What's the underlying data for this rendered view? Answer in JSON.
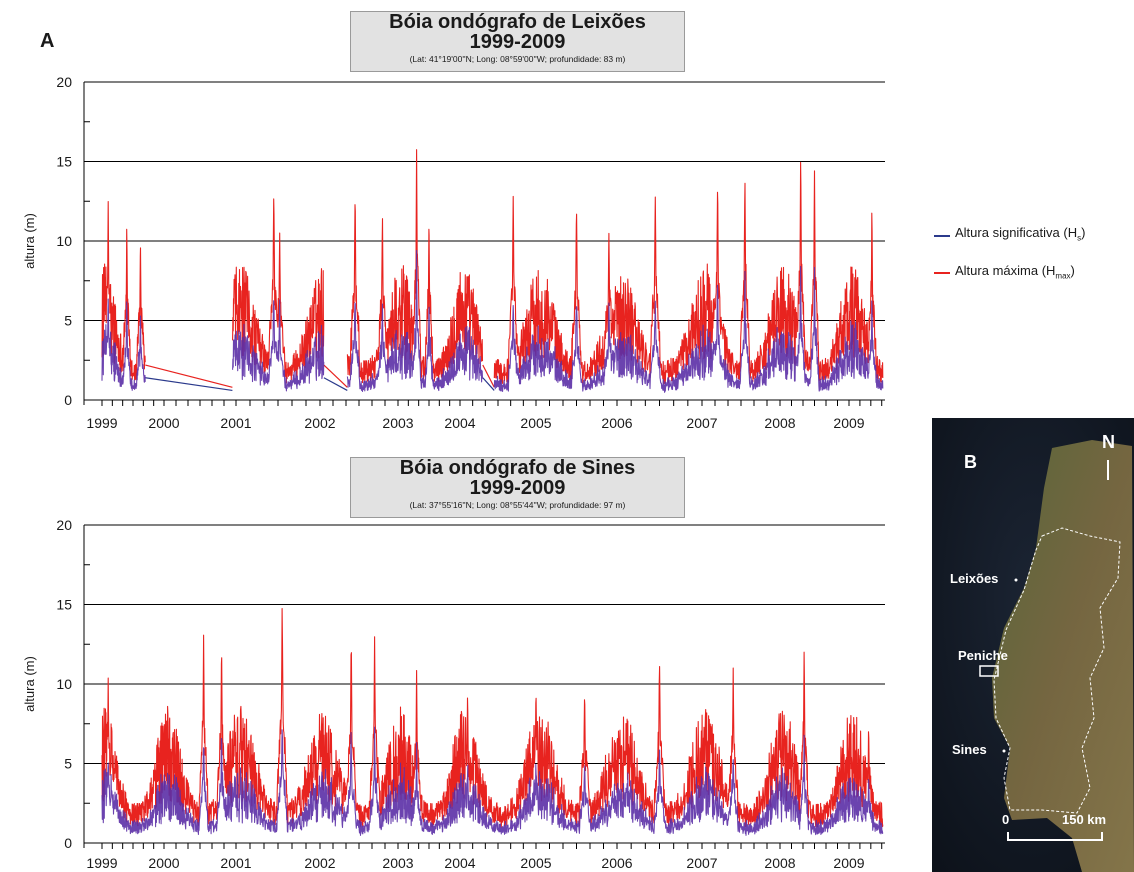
{
  "figure": {
    "panel_a_letter": "A",
    "panel_b_letter": "B",
    "legend": [
      {
        "label_main": "Altura significativa (H",
        "label_sub": "s",
        "label_end": ")",
        "color": "#2b3a8c"
      },
      {
        "label_main": "Altura máxima (H",
        "label_sub": "max",
        "label_end": ")",
        "color": "#e8231f"
      }
    ]
  },
  "colors": {
    "hs": "#2b3a8c",
    "hmax": "#e8231f",
    "purple_overlap": "#6a2aa8",
    "grid": "#000000"
  },
  "map": {
    "north_label": "N",
    "places": [
      "Leixões",
      "Peniche",
      "Sines"
    ],
    "scale_zero": "0",
    "scale_end": "150 km"
  },
  "chart_data": [
    {
      "type": "line",
      "title": "Bóia ondógrafo de Leixões",
      "title_years": "1999-2009",
      "subtitle": "(Lat: 41°19'00''N; Long: 08°59'00''W; profundidade: 83 m)",
      "ylabel": "altura (m)",
      "xlabel": "",
      "ylim": [
        0,
        20
      ],
      "yticks": [
        0,
        5,
        10,
        15,
        20
      ],
      "xlim": [
        1999.0,
        2009.55
      ],
      "xticks": [
        "1999",
        "2000",
        "2001",
        "2002",
        "2003",
        "2004",
        "2005",
        "2006",
        "2007",
        "2008",
        "2009"
      ],
      "grid": "horizontal",
      "series": [
        {
          "name": "Altura significativa (Hs)",
          "color": "#2b3a8c"
        },
        {
          "name": "Altura máxima (Hmax)",
          "color": "#e8231f"
        }
      ],
      "peaks_hmax": [
        {
          "x": 1999.1,
          "y": 13.0
        },
        {
          "x": 1999.4,
          "y": 11.3
        },
        {
          "x": 1999.62,
          "y": 10.4
        },
        {
          "x": 2001.45,
          "y": 13.6
        },
        {
          "x": 2001.52,
          "y": 10.5
        },
        {
          "x": 2002.45,
          "y": 13.5
        },
        {
          "x": 2002.8,
          "y": 12.0
        },
        {
          "x": 2003.3,
          "y": 16.4
        },
        {
          "x": 2003.5,
          "y": 11.8
        },
        {
          "x": 2004.7,
          "y": 13.2
        },
        {
          "x": 2005.5,
          "y": 12.7
        },
        {
          "x": 2005.9,
          "y": 10.8
        },
        {
          "x": 2006.45,
          "y": 13.3
        },
        {
          "x": 2007.2,
          "y": 14.2
        },
        {
          "x": 2007.55,
          "y": 14.5
        },
        {
          "x": 2008.3,
          "y": 15.9
        },
        {
          "x": 2008.5,
          "y": 14.7
        },
        {
          "x": 2009.35,
          "y": 12.5
        }
      ],
      "data_gaps": [
        [
          1999.7,
          2000.95
        ],
        [
          2002.05,
          2002.35
        ],
        [
          2004.3,
          2004.45
        ]
      ]
    },
    {
      "type": "line",
      "title": "Bóia ondógrafo de Sines",
      "title_years": "1999-2009",
      "subtitle": "(Lat: 37°55'16''N; Long: 08°55'44''W; profundidade: 97 m)",
      "ylabel": "altura (m)",
      "xlabel": "",
      "ylim": [
        0,
        20
      ],
      "yticks": [
        0,
        5,
        10,
        15,
        20
      ],
      "xlim": [
        1999.0,
        2009.55
      ],
      "xticks": [
        "1999",
        "2000",
        "2001",
        "2002",
        "2003",
        "2004",
        "2005",
        "2006",
        "2007",
        "2008",
        "2009"
      ],
      "grid": "horizontal",
      "series": [
        {
          "name": "Altura significativa (Hs)",
          "color": "#2b3a8c"
        },
        {
          "name": "Altura máxima (Hmax)",
          "color": "#e8231f"
        }
      ],
      "peaks_hmax": [
        {
          "x": 1999.1,
          "y": 10.8
        },
        {
          "x": 2000.55,
          "y": 13.2
        },
        {
          "x": 2000.8,
          "y": 12.8
        },
        {
          "x": 2001.55,
          "y": 15.2
        },
        {
          "x": 2002.4,
          "y": 13.3
        },
        {
          "x": 2002.7,
          "y": 13.1
        },
        {
          "x": 2003.3,
          "y": 11.3
        },
        {
          "x": 2004.1,
          "y": 9.7
        },
        {
          "x": 2005.0,
          "y": 10.0
        },
        {
          "x": 2005.6,
          "y": 9.9
        },
        {
          "x": 2006.5,
          "y": 11.8
        },
        {
          "x": 2007.4,
          "y": 11.0
        },
        {
          "x": 2008.35,
          "y": 12.5
        },
        {
          "x": 2009.3,
          "y": 7.6
        }
      ],
      "data_gaps": []
    }
  ]
}
